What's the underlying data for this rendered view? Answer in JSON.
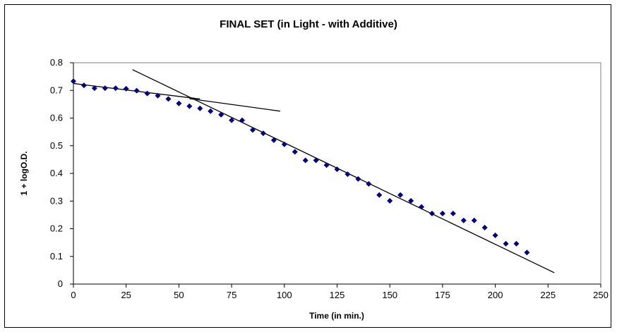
{
  "chart_data": {
    "type": "scatter",
    "title": "FINAL SET (in Light - with Additive)",
    "xlabel": "Time (in min.)",
    "ylabel": "1 + logO.D.",
    "xlim": [
      0,
      250
    ],
    "ylim": [
      0,
      0.8
    ],
    "xticks": [
      "0",
      "25",
      "50",
      "75",
      "100",
      "125",
      "150",
      "175",
      "200",
      "225",
      "250"
    ],
    "yticks": [
      "0",
      "0.1",
      "0.2",
      "0.3",
      "0.4",
      "0.5",
      "0.6",
      "0.7",
      "0.8"
    ],
    "grid": false,
    "legend": "none",
    "marker_color": "#000080",
    "series": [
      {
        "x": [
          0,
          5,
          10,
          15,
          20,
          25,
          30,
          35,
          40,
          45,
          50,
          55,
          60,
          65,
          70,
          75,
          80,
          85,
          90,
          95,
          100,
          105,
          110,
          115,
          120,
          125,
          130,
          135,
          140,
          145,
          150,
          155,
          160,
          165,
          170,
          175,
          180,
          185,
          190,
          195,
          200,
          205,
          210,
          215
        ],
        "y": [
          0.733,
          0.718,
          0.708,
          0.708,
          0.708,
          0.706,
          0.699,
          0.689,
          0.681,
          0.669,
          0.653,
          0.643,
          0.635,
          0.625,
          0.612,
          0.592,
          0.592,
          0.557,
          0.545,
          0.52,
          0.505,
          0.478,
          0.447,
          0.447,
          0.43,
          0.415,
          0.397,
          0.38,
          0.362,
          0.322,
          0.301,
          0.322,
          0.301,
          0.279,
          0.255,
          0.255,
          0.255,
          0.23,
          0.23,
          0.204,
          0.176,
          0.146,
          0.146,
          0.114
        ]
      }
    ],
    "trendlines": [
      {
        "x": [
          0,
          60
        ],
        "y": [
          0.725,
          0.669
        ]
      },
      {
        "x": [
          55,
          98
        ],
        "y": [
          0.67,
          0.625
        ]
      },
      {
        "x": [
          28,
          228
        ],
        "y": [
          0.775,
          0.041
        ]
      }
    ]
  }
}
